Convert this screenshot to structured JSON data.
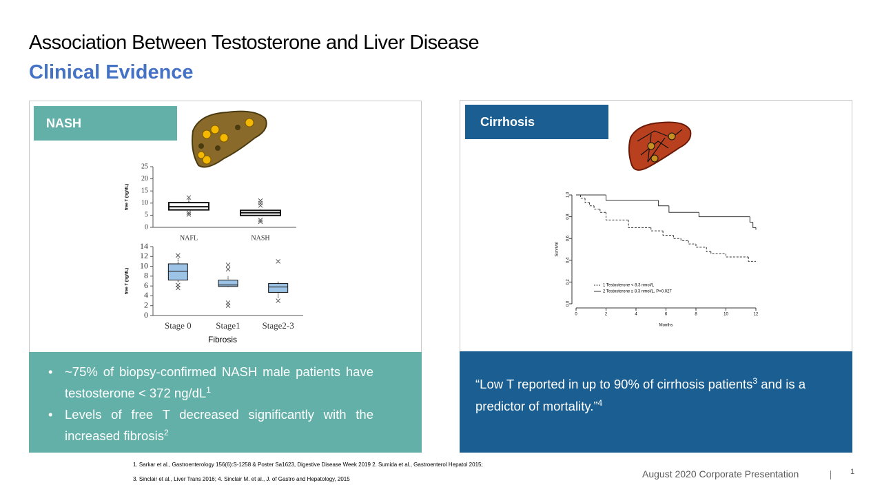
{
  "header": {
    "title": "Association Between Testosterone and Liver Disease",
    "subtitle": "Clinical Evidence"
  },
  "nash": {
    "label": "NASH",
    "bullets": [
      {
        "text": "~75% of biopsy-confirmed NASH male patients have testosterone < 372 ng/dL",
        "ref": "1"
      },
      {
        "text": "Levels of free T decreased significantly with the increased fibrosis",
        "ref": "2"
      }
    ]
  },
  "cirrhosis": {
    "label": "Cirrhosis",
    "quote": [
      {
        "text": "“Low T reported in up to 90% of cirrhosis patients",
        "ref": "3"
      },
      {
        "text": " and is a predictor of mortality.”",
        "ref": "4"
      }
    ]
  },
  "chart_data": [
    {
      "type": "box",
      "ylabel": "free T (ng/dL)",
      "color": "#ffffff",
      "categories": [
        "NAFL",
        "NASH"
      ],
      "boxes": [
        {
          "min": 7,
          "q1": 7.2,
          "median": 8.5,
          "q3": 10.2,
          "max": 11.8,
          "outliers": [
            12.3,
            6,
            5.3
          ]
        },
        {
          "min": 4.8,
          "q1": 4.9,
          "median": 6,
          "q3": 7,
          "max": 7.5,
          "outliers": [
            11,
            10,
            9,
            3,
            2.3
          ]
        }
      ],
      "ylim": [
        0,
        25
      ],
      "yticks": [
        0,
        5,
        10,
        15,
        20,
        25
      ]
    },
    {
      "type": "box",
      "ylabel": "free T (ng/dL)",
      "xlabel": "Fibrosis",
      "color": "#9dc3e6",
      "categories": [
        "Stage 0",
        "Stage1",
        "Stage2-3"
      ],
      "boxes": [
        {
          "min": 6.8,
          "q1": 7.2,
          "median": 9,
          "q3": 10.5,
          "max": 11.8,
          "outliers": [
            12.2,
            6.2,
            5.6
          ]
        },
        {
          "min": 5.8,
          "q1": 5.9,
          "median": 6.2,
          "q3": 7.2,
          "max": 8,
          "outliers": [
            10.3,
            9.4,
            2.6,
            2
          ]
        },
        {
          "min": 3.6,
          "q1": 4.7,
          "median": 5.8,
          "q3": 6.5,
          "max": 7,
          "outliers": [
            11,
            3
          ]
        }
      ],
      "ylim": [
        0,
        14
      ],
      "yticks": [
        0,
        2,
        4,
        6,
        8,
        10,
        12,
        14
      ]
    },
    {
      "type": "step",
      "xlabel": "Months",
      "ylabel": "Survival",
      "series": [
        {
          "name": "1 Testosterone < 8.3 nmol/L",
          "color": "#333333",
          "dash": true,
          "x": [
            0,
            0.3,
            0.6,
            0.9,
            1.2,
            1.6,
            2,
            3.5,
            5,
            5.8,
            6.5,
            7,
            7.5,
            8,
            8.7,
            9,
            10,
            11.5,
            12
          ],
          "values": [
            1,
            0.97,
            0.93,
            0.9,
            0.87,
            0.84,
            0.77,
            0.7,
            0.67,
            0.63,
            0.6,
            0.58,
            0.55,
            0.52,
            0.48,
            0.46,
            0.43,
            0.39,
            0.39
          ]
        },
        {
          "name": "2 Testosterone ≥ 8.3 nmol/L, P=0.027",
          "color": "#333333",
          "dash": false,
          "x": [
            0,
            2,
            5.5,
            6.2,
            8.2,
            11.6,
            11.8,
            12
          ],
          "values": [
            1,
            0.95,
            0.9,
            0.84,
            0.8,
            0.75,
            0.7,
            0.68
          ]
        }
      ],
      "xlim": [
        0,
        12
      ],
      "xticks": [
        0,
        2,
        4,
        6,
        8,
        10,
        12
      ],
      "ylim": [
        0,
        1
      ],
      "yticks": [
        {
          "value": 0,
          "label": "0.0"
        },
        0.2,
        0.4,
        0.6,
        0.8,
        {
          "value": 1,
          "label": "1.0"
        }
      ]
    }
  ],
  "footnotes": [
    "1. Sarkar et al., Gastroenterology 156(6):S-1258 & Poster Sa1623,  Digestive Disease Week 2019 2. Sumida et al., Gastroenterol Hepatol 2015;",
    "3. Sinclair et al., Liver Trans 2016; 4. Sinclair M. et al.,  J. of Gastro and Hepatology, 2015"
  ],
  "footer": {
    "text": "August 2020 Corporate Presentation",
    "page": "1"
  }
}
